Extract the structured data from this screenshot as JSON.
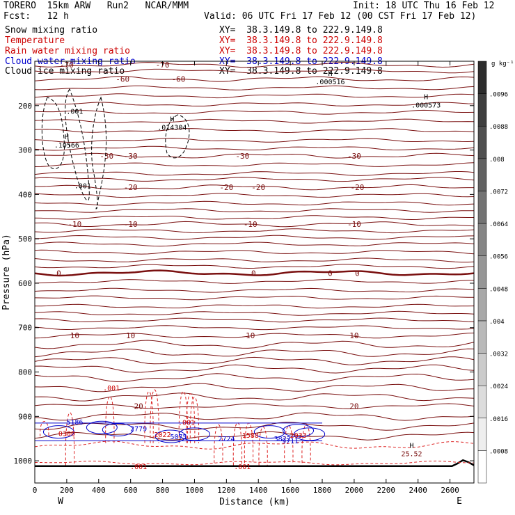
{
  "header": {
    "model": "TORERO  15km ARW   Run2   NCAR/MMM",
    "init": "Init: 18 UTC Thu 16 Feb 12",
    "fcst": "Fcst:   12 h",
    "valid": "Valid: 06 UTC Fri 17 Feb 12 (00 CST Fri 17 Feb 12)"
  },
  "legend": [
    {
      "name": "Snow mixing ratio",
      "xy": "XY=  38.3.149.8 to 222.9.149.8",
      "color": "#000000"
    },
    {
      "name": "Temperature",
      "xy": "XY=  38.3.149.8 to 222.9.149.8",
      "color": "#cc0000"
    },
    {
      "name": "Rain water mixing ratio",
      "xy": "XY=  38.3.149.8 to 222.9.149.8",
      "color": "#cc0000"
    },
    {
      "name": "Cloud water mixing ratio",
      "xy": "XY=  38.3.149.8 to 222.9.149.8",
      "color": "#0000cc"
    },
    {
      "name": "Cloud ice mixing ratio",
      "xy": "XY=  38.3.149.8 to 222.9.149.8",
      "color": "#000000"
    }
  ],
  "chart_data": {
    "type": "contour cross-section",
    "xlabel": "Distance (km)",
    "ylabel": "Pressure (hPa)",
    "xlim": [
      0,
      2750
    ],
    "ylim": [
      1050,
      100
    ],
    "x_ticks": [
      "0",
      "200",
      "400",
      "600",
      "800",
      "1000",
      "1200",
      "1400",
      "1600",
      "1800",
      "2000",
      "2200",
      "2400",
      "2600"
    ],
    "y_ticks": [
      "200",
      "300",
      "400",
      "500",
      "600",
      "700",
      "800",
      "900",
      "1000"
    ],
    "x_end_labels": {
      "left": "W",
      "right": "E"
    },
    "colorbar": {
      "unit": "g kg⁻¹",
      "ticks": [
        ".0008",
        ".0016",
        ".0024",
        ".0032",
        ".004",
        ".0048",
        ".0056",
        ".0064",
        ".0072",
        ".008",
        ".0088",
        ".0096"
      ]
    },
    "temperature_contours": [
      {
        "value": -70,
        "pressure": 108,
        "labels": [
          {
            "x": 200,
            "text": "-70"
          },
          {
            "x": 800,
            "text": "-70"
          }
        ]
      },
      {
        "value": -60,
        "pressure": 140,
        "labels": [
          {
            "x": 550,
            "text": "-60"
          },
          {
            "x": 900,
            "text": "-60"
          }
        ]
      },
      {
        "value": -30,
        "pressure": 313,
        "labels": [
          {
            "x": 450,
            "text": "-30"
          },
          {
            "x": 600,
            "text": "-30"
          },
          {
            "x": 1300,
            "text": "-30"
          },
          {
            "x": 2000,
            "text": "-30"
          }
        ]
      },
      {
        "value": -20,
        "pressure": 384,
        "labels": [
          {
            "x": 600,
            "text": "-20"
          },
          {
            "x": 1200,
            "text": "-20"
          },
          {
            "x": 1400,
            "text": "-20"
          },
          {
            "x": 2020,
            "text": "-20"
          }
        ]
      },
      {
        "value": -10,
        "pressure": 467,
        "labels": [
          {
            "x": 250,
            "text": "-10"
          },
          {
            "x": 600,
            "text": "-10"
          },
          {
            "x": 1350,
            "text": "-10"
          },
          {
            "x": 2000,
            "text": "-10"
          }
        ]
      },
      {
        "value": 0,
        "pressure": 577,
        "labels": [
          {
            "x": 150,
            "text": "0"
          },
          {
            "x": 1370,
            "text": "0"
          },
          {
            "x": 1850,
            "text": "0"
          },
          {
            "x": 2020,
            "text": "0"
          }
        ]
      },
      {
        "value": 10,
        "pressure": 718,
        "labels": [
          {
            "x": 250,
            "text": "10"
          },
          {
            "x": 600,
            "text": "10"
          },
          {
            "x": 1350,
            "text": "10"
          },
          {
            "x": 2000,
            "text": "10"
          }
        ]
      },
      {
        "value": 20,
        "pressure": 877,
        "labels": [
          {
            "x": 650,
            "text": "20"
          },
          {
            "x": 2000,
            "text": "20"
          }
        ]
      }
    ],
    "unlabeled_isotherm_pressures": [
      122,
      160,
      178,
      197,
      215,
      235,
      256,
      278,
      296,
      333,
      353,
      366,
      402,
      420,
      436,
      452,
      482,
      497,
      512,
      530,
      548,
      562,
      596,
      616,
      633,
      652,
      668,
      683,
      700,
      738,
      757,
      775,
      793,
      813,
      835,
      856,
      900,
      922,
      944
    ],
    "extrema": [
      {
        "type": "H",
        "label": ".000516",
        "x": 1850,
        "pressure": 142
      },
      {
        "type": "H",
        "label": ".000573",
        "x": 2450,
        "pressure": 195
      },
      {
        "type": "H",
        "label": ".014304",
        "x": 860,
        "pressure": 245
      },
      {
        "type": "H",
        "label": ".10566",
        "x": 200,
        "pressure": 285
      },
      {
        "type": "H",
        "label": "25.52",
        "x": 2360,
        "pressure": 980
      }
    ],
    "ice_labels": [
      {
        "x": 250,
        "pressure": 212,
        "text": ".001"
      },
      {
        "x": 300,
        "pressure": 380,
        "text": ".001"
      }
    ],
    "cloud_water_labels": [
      {
        "x": 250,
        "pressure": 912,
        "text": "5186"
      },
      {
        "x": 650,
        "pressure": 927,
        "text": "2779"
      },
      {
        "x": 900,
        "pressure": 945,
        "text": "5075"
      },
      {
        "x": 1200,
        "pressure": 950,
        "text": "2724"
      },
      {
        "x": 1550,
        "pressure": 950,
        "text": "3822"
      },
      {
        "x": 1600,
        "pressure": 954,
        "text": "9711"
      }
    ],
    "rain_labels": [
      {
        "x": 200,
        "pressure": 938,
        "text": "0300"
      },
      {
        "x": 800,
        "pressure": 940,
        "text": "2022"
      },
      {
        "x": 1350,
        "pressure": 942,
        "text": "1588"
      },
      {
        "x": 1650,
        "pressure": 942,
        "text": "2033"
      },
      {
        "x": 480,
        "pressure": 835,
        "text": ".001"
      },
      {
        "x": 950,
        "pressure": 913,
        "text": ".001"
      },
      {
        "x": 650,
        "pressure": 1012,
        "text": ".001"
      },
      {
        "x": 1300,
        "pressure": 1012,
        "text": ".001"
      }
    ]
  }
}
